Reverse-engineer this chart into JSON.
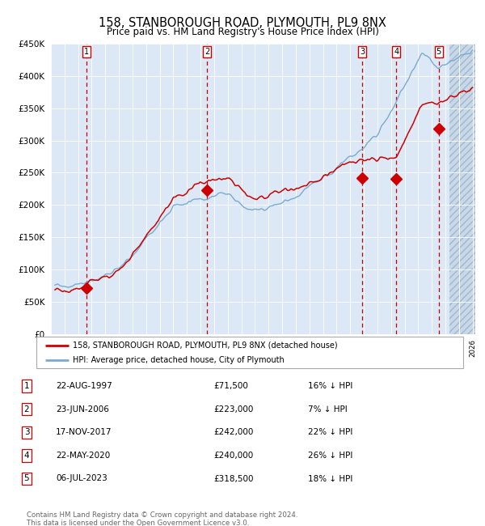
{
  "title": "158, STANBOROUGH ROAD, PLYMOUTH, PL9 8NX",
  "subtitle": "Price paid vs. HM Land Registry's House Price Index (HPI)",
  "ylim": [
    0,
    450000
  ],
  "xlim_start": 1995.5,
  "xlim_end": 2026.2,
  "hatch_start": 2024.3,
  "background_color": "#dce8f5",
  "hatch_bg_color": "#c8d8e8",
  "grid_color": "#ffffff",
  "sale_dates": [
    1997.64,
    2006.48,
    2017.89,
    2020.39,
    2023.51
  ],
  "sale_prices": [
    71500,
    223000,
    242000,
    240000,
    318500
  ],
  "sale_labels": [
    "1",
    "2",
    "3",
    "4",
    "5"
  ],
  "legend_red": "158, STANBOROUGH ROAD, PLYMOUTH, PL9 8NX (detached house)",
  "legend_blue": "HPI: Average price, detached house, City of Plymouth",
  "table_rows": [
    [
      "1",
      "22-AUG-1997",
      "£71,500",
      "16% ↓ HPI"
    ],
    [
      "2",
      "23-JUN-2006",
      "£223,000",
      "7% ↓ HPI"
    ],
    [
      "3",
      "17-NOV-2017",
      "£242,000",
      "22% ↓ HPI"
    ],
    [
      "4",
      "22-MAY-2020",
      "£240,000",
      "26% ↓ HPI"
    ],
    [
      "5",
      "06-JUL-2023",
      "£318,500",
      "18% ↓ HPI"
    ]
  ],
  "footer": "Contains HM Land Registry data © Crown copyright and database right 2024.\nThis data is licensed under the Open Government Licence v3.0.",
  "red_line_color": "#cc0000",
  "blue_line_color": "#7aaad0",
  "marker_color": "#cc0000",
  "vline_color": "#cc0000",
  "label_box_color": "#cc0000",
  "legend_border_color": "#aaaaaa",
  "footer_color": "#666666"
}
